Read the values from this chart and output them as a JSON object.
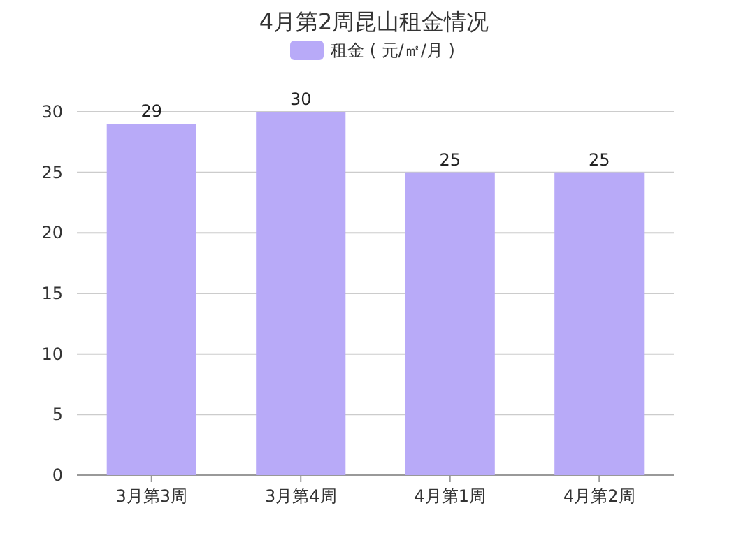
{
  "chart_data": {
    "type": "bar",
    "title": "4月第2周昆山租金情况",
    "categories": [
      "3月第3周",
      "3月第4周",
      "4月第1周",
      "4月第2周"
    ],
    "series": [
      {
        "name": "租金 ( 元/㎡/月 )",
        "color": "#b8aaf8",
        "values": [
          29,
          30,
          25,
          25
        ]
      }
    ],
    "ylim": [
      0,
      30
    ],
    "yticks": [
      0,
      5,
      10,
      15,
      20,
      25,
      30
    ],
    "grid": "y",
    "legend": "top",
    "data_labels": true
  }
}
